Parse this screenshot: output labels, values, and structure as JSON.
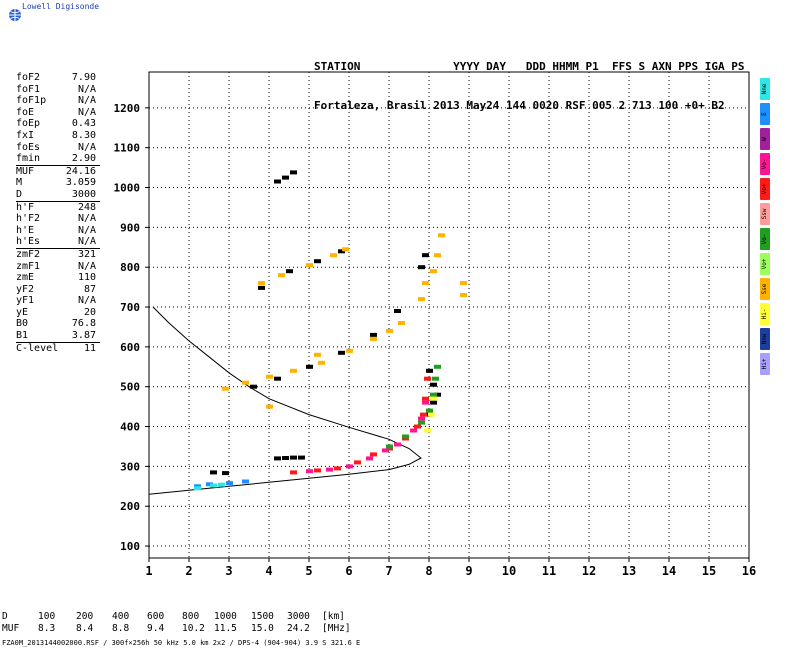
{
  "brand": {
    "name": "Lowell Digisonde",
    "logo": "globe-icon"
  },
  "header": {
    "line1": "STATION              YYYY DAY   DDD HHMM P1  FFS S AXN PPS IGA PS",
    "line2": "Fortaleza, Brasil 2013 May24 144 0020 RSF 005 2 713 100 +0+ B2"
  },
  "params": {
    "group1": [
      {
        "key": "foF2",
        "value": "7.90"
      },
      {
        "key": "foF1",
        "value": "N/A"
      },
      {
        "key": "foF1p",
        "value": "N/A"
      },
      {
        "key": "foE",
        "value": "N/A"
      },
      {
        "key": "foEp",
        "value": "0.43"
      },
      {
        "key": "fxI",
        "value": "8.30"
      },
      {
        "key": "foEs",
        "value": "N/A"
      },
      {
        "key": "fmin",
        "value": "2.90"
      }
    ],
    "group2": [
      {
        "key": "MUF",
        "value": "24.16"
      },
      {
        "key": "M",
        "value": "3.059"
      },
      {
        "key": "D",
        "value": "3000"
      }
    ],
    "group3": [
      {
        "key": "h'F",
        "value": "248"
      },
      {
        "key": "h'F2",
        "value": "N/A"
      },
      {
        "key": "h'E",
        "value": "N/A"
      },
      {
        "key": "h'Es",
        "value": "N/A"
      }
    ],
    "group4": [
      {
        "key": "zmF2",
        "value": "321"
      },
      {
        "key": "zmF1",
        "value": "N/A"
      },
      {
        "key": "zmE",
        "value": "110"
      },
      {
        "key": "yF2",
        "value": "87"
      },
      {
        "key": "yF1",
        "value": "N/A"
      },
      {
        "key": "yE",
        "value": "20"
      },
      {
        "key": "B0",
        "value": "76.8"
      },
      {
        "key": "B1",
        "value": "3.87"
      }
    ],
    "group5": [
      {
        "key": "C-level",
        "value": "11"
      }
    ]
  },
  "legend": [
    {
      "label": "Nne",
      "color": "#2ee6e6"
    },
    {
      "label": "E",
      "color": "#1e8fff"
    },
    {
      "label": "W",
      "color": "#a020a0"
    },
    {
      "label": "Vo-",
      "color": "#ff1493"
    },
    {
      "label": "Vo+",
      "color": "#ff1a1a"
    },
    {
      "label": "Ssw",
      "color": "#ff9c9c"
    },
    {
      "label": "Vo-",
      "color": "#1f9e1f"
    },
    {
      "label": "Vo+",
      "color": "#9dff5a"
    },
    {
      "label": "Sse",
      "color": "#ffb300"
    },
    {
      "label": "Hi-",
      "color": "#ffff33"
    },
    {
      "label": "Nnw",
      "color": "#1c3f9e"
    },
    {
      "label": "Hi+",
      "color": "#a8a0ff"
    }
  ],
  "muf_table": {
    "row1_label": "D",
    "row1": [
      "100",
      "200",
      "400",
      "600",
      "800",
      "1000",
      "1500",
      "3000"
    ],
    "row1_unit": "[km]",
    "row2_label": "MUF",
    "row2": [
      "8.3",
      "8.4",
      "8.8",
      "9.4",
      "10.2",
      "11.5",
      "15.0",
      "24.2"
    ],
    "row2_unit": "[MHz]"
  },
  "footer": "FZA0M_2013144002000.RSF / 300f×256h 50 kHz 5.0 km 2x2 / DPS-4 (904-904)  3.9 S 321.6 E",
  "chart_data": {
    "type": "scatter",
    "title": "",
    "xlabel": "",
    "ylabel": "",
    "xlim": [
      1,
      16
    ],
    "ylim": [
      70,
      1290
    ],
    "x_ticks": [
      1,
      2,
      3,
      4,
      5,
      6,
      7,
      8,
      9,
      10,
      11,
      12,
      13,
      14,
      15,
      16
    ],
    "y_ticks": [
      100,
      200,
      300,
      400,
      500,
      600,
      700,
      800,
      900,
      1000,
      1100,
      1200
    ],
    "grid": "dotted",
    "series": [
      {
        "color": "#000000",
        "points": [
          [
            4.2,
            320
          ],
          [
            4.4,
            321
          ],
          [
            4.6,
            322
          ],
          [
            4.8,
            322
          ],
          [
            2.6,
            285
          ],
          [
            2.9,
            283
          ],
          [
            4.2,
            1015
          ],
          [
            4.4,
            1025
          ],
          [
            4.6,
            1038
          ],
          [
            3.8,
            748
          ],
          [
            4.5,
            790
          ],
          [
            5.2,
            815
          ],
          [
            5.8,
            840
          ],
          [
            3.6,
            500
          ],
          [
            4.2,
            520
          ],
          [
            5.0,
            550
          ],
          [
            5.8,
            585
          ],
          [
            6.6,
            630
          ],
          [
            7.2,
            690
          ],
          [
            7.8,
            800
          ],
          [
            7.9,
            830
          ],
          [
            8.0,
            540
          ],
          [
            8.1,
            505
          ],
          [
            8.2,
            480
          ],
          [
            8.1,
            460
          ],
          [
            8.0,
            430
          ]
        ]
      },
      {
        "color": "#ffb300",
        "points": [
          [
            3.8,
            760
          ],
          [
            4.3,
            780
          ],
          [
            5.0,
            805
          ],
          [
            5.6,
            830
          ],
          [
            5.9,
            845
          ],
          [
            7.8,
            720
          ],
          [
            7.9,
            760
          ],
          [
            8.1,
            790
          ],
          [
            8.2,
            830
          ],
          [
            8.3,
            880
          ],
          [
            8.85,
            760
          ],
          [
            8.85,
            730
          ],
          [
            2.9,
            495
          ],
          [
            3.4,
            510
          ],
          [
            4.0,
            525
          ],
          [
            4.6,
            540
          ],
          [
            5.3,
            560
          ],
          [
            6.0,
            590
          ],
          [
            6.6,
            620
          ],
          [
            7.0,
            640
          ],
          [
            7.3,
            660
          ],
          [
            4.0,
            450
          ],
          [
            5.2,
            580
          ]
        ]
      },
      {
        "color": "#ff1a1a",
        "points": [
          [
            4.6,
            285
          ],
          [
            5.2,
            290
          ],
          [
            5.7,
            295
          ],
          [
            6.2,
            310
          ],
          [
            6.6,
            330
          ],
          [
            7.0,
            345
          ],
          [
            7.4,
            370
          ],
          [
            7.7,
            400
          ],
          [
            7.85,
            430
          ],
          [
            7.9,
            470
          ],
          [
            7.95,
            520
          ]
        ]
      },
      {
        "color": "#ff1493",
        "points": [
          [
            5.0,
            288
          ],
          [
            5.5,
            292
          ],
          [
            6.0,
            300
          ],
          [
            6.5,
            320
          ],
          [
            6.9,
            340
          ],
          [
            7.2,
            355
          ],
          [
            7.6,
            390
          ],
          [
            7.8,
            420
          ],
          [
            7.9,
            460
          ]
        ]
      },
      {
        "color": "#1f9e1f",
        "points": [
          [
            7.0,
            350
          ],
          [
            7.4,
            375
          ],
          [
            7.8,
            410
          ],
          [
            8.0,
            440
          ],
          [
            8.1,
            480
          ],
          [
            8.15,
            520
          ],
          [
            8.2,
            550
          ]
        ]
      },
      {
        "color": "#1e8fff",
        "points": [
          [
            2.2,
            250
          ],
          [
            2.5,
            255
          ],
          [
            3.0,
            258
          ],
          [
            3.4,
            262
          ]
        ]
      },
      {
        "color": "#2ee6e6",
        "points": [
          [
            2.2,
            245
          ],
          [
            2.6,
            252
          ],
          [
            2.8,
            254
          ]
        ]
      },
      {
        "color": "#ffff33",
        "points": [
          [
            8.05,
            430
          ],
          [
            8.1,
            470
          ],
          [
            7.95,
            390
          ]
        ]
      }
    ],
    "profile_line": [
      [
        1.0,
        230
      ],
      [
        2.0,
        240
      ],
      [
        3.0,
        250
      ],
      [
        4.0,
        260
      ],
      [
        5.0,
        270
      ],
      [
        6.0,
        280
      ],
      [
        7.0,
        292
      ],
      [
        7.5,
        305
      ],
      [
        7.8,
        321
      ],
      [
        7.5,
        345
      ],
      [
        7.0,
        368
      ],
      [
        6.0,
        398
      ],
      [
        5.0,
        430
      ],
      [
        4.0,
        470
      ],
      [
        3.5,
        500
      ],
      [
        3.0,
        535
      ],
      [
        2.5,
        575
      ],
      [
        2.0,
        615
      ],
      [
        1.5,
        660
      ],
      [
        1.1,
        700
      ]
    ]
  }
}
